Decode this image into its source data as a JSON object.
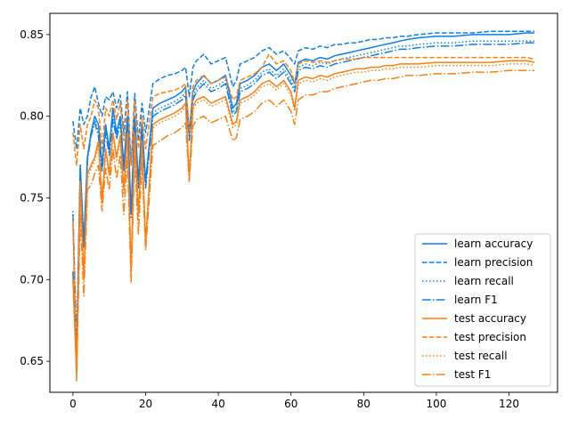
{
  "chart_data": {
    "type": "line",
    "title": "",
    "xlabel": "",
    "ylabel": "",
    "xlim": [
      -6.35,
      133.35
    ],
    "ylim": [
      0.631,
      0.863
    ],
    "x_ticks": [
      0,
      20,
      40,
      60,
      80,
      100,
      120
    ],
    "y_ticks": [
      0.65,
      0.7,
      0.75,
      0.8,
      0.85
    ],
    "x_tick_labels": [
      "0",
      "20",
      "40",
      "60",
      "80",
      "100",
      "120"
    ],
    "y_tick_labels": [
      "0.65",
      "0.70",
      "0.75",
      "0.80",
      "0.85"
    ],
    "grid": false,
    "legend_position": "lower-right",
    "legend_labels": [
      "learn accuracy",
      "learn precision",
      "learn recall",
      "learn F1",
      "test accuracy",
      "test precision",
      "test recall",
      "test F1"
    ],
    "colors": {
      "learn": "#1f77b4",
      "learn_bright": "#0a7ff0",
      "test": "#ff7f0e"
    },
    "x": [
      0,
      1,
      2,
      3,
      4,
      5,
      6,
      7,
      8,
      9,
      10,
      11,
      12,
      13,
      14,
      15,
      16,
      17,
      18,
      19,
      20,
      22,
      24,
      26,
      28,
      30,
      31,
      32,
      33,
      34,
      36,
      38,
      40,
      42,
      44,
      45,
      46,
      48,
      50,
      52,
      54,
      56,
      58,
      60,
      61,
      62,
      64,
      66,
      68,
      70,
      72,
      74,
      76,
      78,
      80,
      82,
      84,
      86,
      88,
      90,
      92,
      95,
      100,
      105,
      110,
      115,
      120,
      125,
      127
    ],
    "series": [
      {
        "name": "learn accuracy",
        "color": "#0a7ff0",
        "dash": "solid",
        "values": [
          0.705,
          0.645,
          0.77,
          0.72,
          0.775,
          0.79,
          0.8,
          0.795,
          0.77,
          0.795,
          0.78,
          0.805,
          0.79,
          0.8,
          0.77,
          0.8,
          0.74,
          0.8,
          0.76,
          0.795,
          0.76,
          0.805,
          0.808,
          0.81,
          0.812,
          0.815,
          0.818,
          0.79,
          0.815,
          0.82,
          0.825,
          0.82,
          0.822,
          0.825,
          0.805,
          0.808,
          0.82,
          0.822,
          0.825,
          0.83,
          0.832,
          0.828,
          0.832,
          0.825,
          0.82,
          0.833,
          0.835,
          0.834,
          0.836,
          0.835,
          0.837,
          0.838,
          0.839,
          0.84,
          0.841,
          0.842,
          0.843,
          0.844,
          0.845,
          0.846,
          0.847,
          0.848,
          0.849,
          0.849,
          0.85,
          0.85,
          0.85,
          0.851,
          0.851
        ]
      },
      {
        "name": "learn precision",
        "color": "#0a7ff0",
        "dash": "dashed",
        "values": [
          0.797,
          0.78,
          0.805,
          0.795,
          0.8,
          0.812,
          0.818,
          0.808,
          0.8,
          0.812,
          0.81,
          0.815,
          0.805,
          0.813,
          0.79,
          0.815,
          0.77,
          0.814,
          0.785,
          0.808,
          0.79,
          0.82,
          0.823,
          0.825,
          0.826,
          0.828,
          0.83,
          0.812,
          0.83,
          0.834,
          0.838,
          0.832,
          0.834,
          0.836,
          0.818,
          0.822,
          0.832,
          0.834,
          0.836,
          0.84,
          0.842,
          0.838,
          0.84,
          0.835,
          0.832,
          0.84,
          0.842,
          0.841,
          0.843,
          0.842,
          0.844,
          0.844,
          0.845,
          0.845,
          0.846,
          0.847,
          0.847,
          0.848,
          0.848,
          0.849,
          0.849,
          0.85,
          0.851,
          0.851,
          0.851,
          0.852,
          0.852,
          0.852,
          0.852
        ]
      },
      {
        "name": "learn recall",
        "color": "#0a7ff0",
        "dash": "dotted",
        "values": [
          0.742,
          0.66,
          0.77,
          0.725,
          0.775,
          0.79,
          0.798,
          0.79,
          0.768,
          0.792,
          0.778,
          0.8,
          0.788,
          0.798,
          0.768,
          0.798,
          0.74,
          0.798,
          0.758,
          0.792,
          0.758,
          0.802,
          0.805,
          0.807,
          0.809,
          0.812,
          0.815,
          0.787,
          0.812,
          0.817,
          0.822,
          0.817,
          0.819,
          0.822,
          0.802,
          0.805,
          0.817,
          0.819,
          0.822,
          0.827,
          0.829,
          0.825,
          0.829,
          0.822,
          0.817,
          0.83,
          0.832,
          0.831,
          0.833,
          0.832,
          0.834,
          0.835,
          0.836,
          0.837,
          0.838,
          0.839,
          0.84,
          0.841,
          0.842,
          0.843,
          0.843,
          0.844,
          0.845,
          0.845,
          0.846,
          0.846,
          0.846,
          0.846,
          0.846
        ]
      },
      {
        "name": "learn F1",
        "color": "#0a7ff0",
        "dash": "dashdot",
        "values": [
          0.74,
          0.658,
          0.768,
          0.722,
          0.773,
          0.788,
          0.796,
          0.788,
          0.766,
          0.79,
          0.776,
          0.798,
          0.786,
          0.796,
          0.766,
          0.796,
          0.738,
          0.796,
          0.756,
          0.79,
          0.756,
          0.8,
          0.803,
          0.805,
          0.807,
          0.81,
          0.813,
          0.785,
          0.81,
          0.815,
          0.82,
          0.815,
          0.817,
          0.82,
          0.8,
          0.803,
          0.815,
          0.817,
          0.82,
          0.825,
          0.827,
          0.823,
          0.827,
          0.82,
          0.815,
          0.828,
          0.83,
          0.829,
          0.831,
          0.83,
          0.832,
          0.833,
          0.834,
          0.835,
          0.836,
          0.837,
          0.838,
          0.839,
          0.84,
          0.841,
          0.841,
          0.842,
          0.843,
          0.843,
          0.844,
          0.844,
          0.844,
          0.845,
          0.845
        ]
      },
      {
        "name": "test accuracy",
        "color": "#ff7f0e",
        "dash": "solid",
        "values": [
          0.7,
          0.642,
          0.76,
          0.7,
          0.765,
          0.77,
          0.775,
          0.785,
          0.748,
          0.78,
          0.765,
          0.79,
          0.775,
          0.788,
          0.755,
          0.79,
          0.705,
          0.79,
          0.74,
          0.785,
          0.722,
          0.795,
          0.798,
          0.8,
          0.802,
          0.805,
          0.808,
          0.762,
          0.806,
          0.81,
          0.812,
          0.808,
          0.81,
          0.812,
          0.795,
          0.797,
          0.81,
          0.812,
          0.815,
          0.82,
          0.822,
          0.818,
          0.822,
          0.815,
          0.805,
          0.822,
          0.824,
          0.823,
          0.825,
          0.824,
          0.826,
          0.827,
          0.828,
          0.829,
          0.829,
          0.83,
          0.83,
          0.831,
          0.831,
          0.832,
          0.832,
          0.832,
          0.833,
          0.833,
          0.833,
          0.833,
          0.834,
          0.834,
          0.833
        ]
      },
      {
        "name": "test precision",
        "color": "#ff7f0e",
        "dash": "dashed",
        "values": [
          0.79,
          0.77,
          0.795,
          0.78,
          0.795,
          0.8,
          0.81,
          0.805,
          0.78,
          0.805,
          0.8,
          0.81,
          0.798,
          0.808,
          0.785,
          0.81,
          0.77,
          0.81,
          0.78,
          0.8,
          0.78,
          0.812,
          0.814,
          0.815,
          0.816,
          0.818,
          0.82,
          0.79,
          0.818,
          0.822,
          0.825,
          0.82,
          0.822,
          0.824,
          0.81,
          0.812,
          0.822,
          0.824,
          0.826,
          0.83,
          0.838,
          0.832,
          0.834,
          0.828,
          0.82,
          0.832,
          0.834,
          0.833,
          0.834,
          0.833,
          0.834,
          0.835,
          0.835,
          0.835,
          0.836,
          0.836,
          0.836,
          0.836,
          0.836,
          0.836,
          0.836,
          0.836,
          0.836,
          0.836,
          0.836,
          0.836,
          0.836,
          0.836,
          0.835
        ]
      },
      {
        "name": "test recall",
        "color": "#ff7f0e",
        "dash": "dotted",
        "values": [
          0.738,
          0.652,
          0.758,
          0.705,
          0.762,
          0.768,
          0.773,
          0.782,
          0.746,
          0.778,
          0.763,
          0.788,
          0.773,
          0.786,
          0.753,
          0.788,
          0.705,
          0.788,
          0.738,
          0.783,
          0.722,
          0.793,
          0.796,
          0.798,
          0.8,
          0.803,
          0.806,
          0.762,
          0.804,
          0.808,
          0.81,
          0.806,
          0.808,
          0.81,
          0.793,
          0.795,
          0.808,
          0.81,
          0.813,
          0.818,
          0.82,
          0.816,
          0.82,
          0.813,
          0.803,
          0.82,
          0.822,
          0.821,
          0.823,
          0.822,
          0.824,
          0.825,
          0.826,
          0.827,
          0.827,
          0.828,
          0.828,
          0.829,
          0.829,
          0.83,
          0.83,
          0.83,
          0.831,
          0.831,
          0.831,
          0.831,
          0.832,
          0.832,
          0.831
        ]
      },
      {
        "name": "test F1",
        "color": "#ff7f0e",
        "dash": "dashdot",
        "values": [
          0.735,
          0.638,
          0.74,
          0.69,
          0.755,
          0.758,
          0.765,
          0.77,
          0.742,
          0.768,
          0.755,
          0.78,
          0.762,
          0.776,
          0.74,
          0.776,
          0.698,
          0.776,
          0.728,
          0.772,
          0.718,
          0.782,
          0.785,
          0.788,
          0.79,
          0.793,
          0.796,
          0.76,
          0.794,
          0.798,
          0.8,
          0.796,
          0.798,
          0.8,
          0.785,
          0.787,
          0.798,
          0.8,
          0.803,
          0.808,
          0.81,
          0.806,
          0.81,
          0.803,
          0.795,
          0.81,
          0.813,
          0.813,
          0.815,
          0.815,
          0.817,
          0.818,
          0.819,
          0.82,
          0.821,
          0.822,
          0.822,
          0.823,
          0.823,
          0.824,
          0.825,
          0.825,
          0.826,
          0.826,
          0.827,
          0.827,
          0.828,
          0.828,
          0.828
        ]
      }
    ]
  }
}
